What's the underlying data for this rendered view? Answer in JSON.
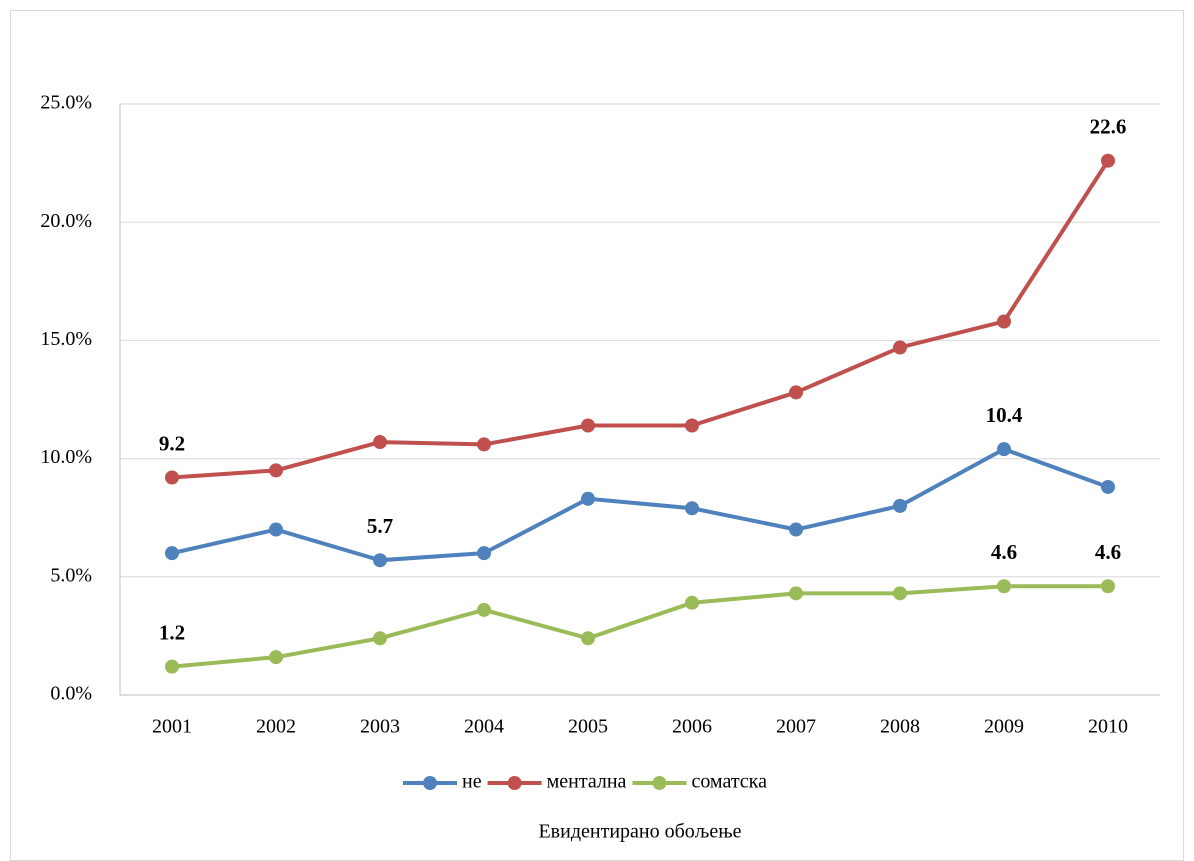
{
  "chart_data": {
    "type": "line",
    "x_label": "Евидентирано обољење",
    "categories": [
      "2001",
      "2002",
      "2003",
      "2004",
      "2005",
      "2006",
      "2007",
      "2008",
      "2009",
      "2010"
    ],
    "series": [
      {
        "name": "не",
        "color": "#4f81bd",
        "values": [
          6.0,
          7.0,
          5.7,
          6.0,
          8.3,
          7.9,
          7.0,
          8.0,
          10.4,
          8.8
        ],
        "value_labels": [
          null,
          null,
          "5.7",
          null,
          null,
          null,
          null,
          null,
          "10.4",
          null
        ]
      },
      {
        "name": "ментална",
        "color": "#c0504d",
        "values": [
          9.2,
          9.5,
          10.7,
          10.6,
          11.4,
          11.4,
          12.8,
          14.7,
          15.8,
          22.6
        ],
        "value_labels": [
          "9.2",
          null,
          null,
          null,
          null,
          null,
          null,
          null,
          null,
          "22.6"
        ]
      },
      {
        "name": "соматска",
        "color": "#9bbb59",
        "values": [
          1.2,
          1.6,
          2.4,
          3.6,
          2.4,
          3.9,
          4.3,
          4.3,
          4.6,
          4.6
        ],
        "value_labels": [
          "1.2",
          null,
          null,
          null,
          null,
          null,
          null,
          null,
          "4.6",
          "4.6"
        ]
      }
    ],
    "ylim": [
      0,
      25
    ],
    "yticks": [
      {
        "value": 0,
        "label": "0.0%"
      },
      {
        "value": 5,
        "label": "5.0%"
      },
      {
        "value": 10,
        "label": "10.0%"
      },
      {
        "value": 15,
        "label": "15.0%"
      },
      {
        "value": 20,
        "label": "20.0%"
      },
      {
        "value": 25,
        "label": "25.0%"
      }
    ],
    "grid": true,
    "legend": "bottom"
  }
}
